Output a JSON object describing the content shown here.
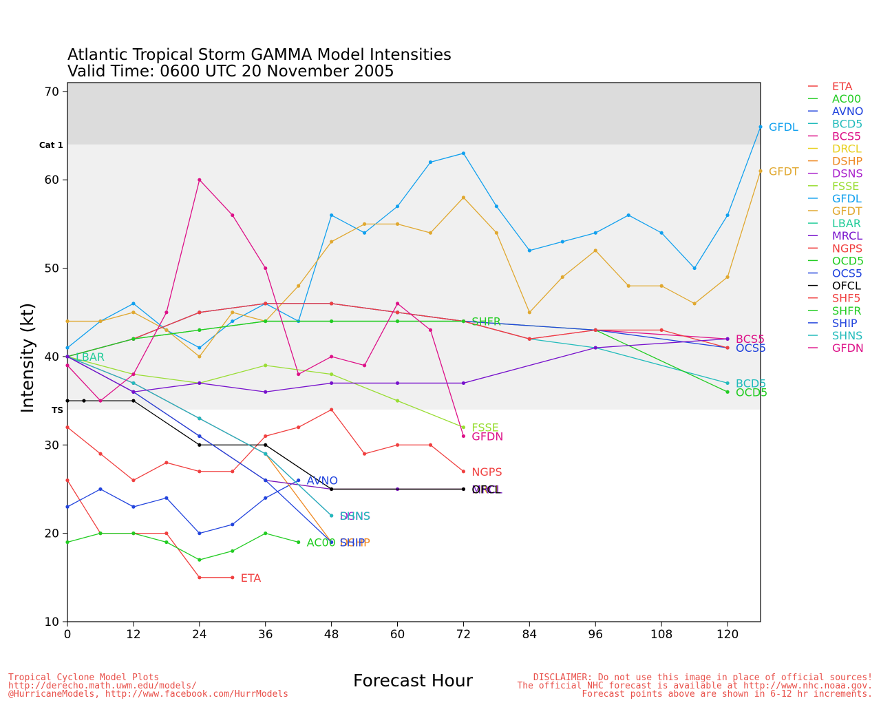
{
  "chart_data": {
    "type": "line",
    "title": "Atlantic Tropical Storm GAMMA Model Intensities",
    "subtitle": "Valid Time: 0600 UTC 20 November 2005",
    "xlabel": "Forecast Hour",
    "ylabel": "Intensity (kt)",
    "xlim": [
      0,
      126
    ],
    "ylim": [
      10,
      71
    ],
    "xticks": [
      0,
      12,
      24,
      36,
      48,
      60,
      72,
      84,
      96,
      108,
      120
    ],
    "yticks": [
      10,
      20,
      30,
      40,
      50,
      60,
      70
    ],
    "bands": [
      {
        "from": 34,
        "to": 64,
        "color": "#f0f0f0",
        "label": "TS",
        "label_at": 34
      },
      {
        "from": 64,
        "to": 71,
        "color": "#dcdcdc",
        "label": "Cat 1",
        "label_at": 64
      }
    ],
    "legend_position": "right",
    "series": [
      {
        "name": "ETA",
        "color": "#f04040",
        "points": [
          [
            0,
            26
          ],
          [
            6,
            20
          ],
          [
            12,
            20
          ],
          [
            18,
            20
          ],
          [
            24,
            15
          ],
          [
            30,
            15
          ]
        ]
      },
      {
        "name": "AC00",
        "color": "#22cc22",
        "points": [
          [
            0,
            19
          ],
          [
            6,
            20
          ],
          [
            12,
            20
          ],
          [
            18,
            19
          ],
          [
            24,
            17
          ],
          [
            30,
            18
          ],
          [
            36,
            20
          ],
          [
            42,
            19
          ]
        ]
      },
      {
        "name": "AVNO",
        "color": "#2244dd",
        "points": [
          [
            0,
            23
          ],
          [
            6,
            25
          ],
          [
            12,
            23
          ],
          [
            18,
            24
          ],
          [
            24,
            20
          ],
          [
            30,
            21
          ],
          [
            36,
            24
          ],
          [
            42,
            26
          ]
        ]
      },
      {
        "name": "BCD5",
        "color": "#22bbbb",
        "points": [
          [
            0,
            40
          ],
          [
            12,
            42
          ],
          [
            24,
            45
          ],
          [
            36,
            46
          ],
          [
            48,
            46
          ],
          [
            60,
            45
          ],
          [
            72,
            44
          ],
          [
            84,
            42
          ],
          [
            96,
            41
          ],
          [
            120,
            37
          ]
        ]
      },
      {
        "name": "BCS5",
        "color": "#dd1188",
        "points": [
          [
            0,
            40
          ],
          [
            12,
            42
          ],
          [
            24,
            45
          ],
          [
            36,
            46
          ],
          [
            48,
            46
          ],
          [
            60,
            45
          ],
          [
            72,
            44
          ],
          [
            84,
            42
          ],
          [
            96,
            43
          ],
          [
            120,
            42
          ]
        ]
      },
      {
        "name": "DRCL",
        "color": "#e8d020",
        "points": [
          [
            0,
            40
          ],
          [
            12,
            36
          ],
          [
            24,
            31
          ],
          [
            36,
            26
          ],
          [
            48,
            25
          ],
          [
            60,
            25
          ],
          [
            72,
            25
          ]
        ]
      },
      {
        "name": "DSHP",
        "color": "#ee8822",
        "points": [
          [
            0,
            40
          ],
          [
            12,
            37
          ],
          [
            24,
            33
          ],
          [
            36,
            29
          ],
          [
            48,
            19
          ]
        ]
      },
      {
        "name": "DSNS",
        "color": "#aa22cc",
        "points": [
          [
            0,
            40
          ],
          [
            12,
            37
          ],
          [
            24,
            33
          ],
          [
            36,
            29
          ],
          [
            48,
            22
          ]
        ]
      },
      {
        "name": "FSSE",
        "color": "#99dd33",
        "points": [
          [
            0,
            40
          ],
          [
            12,
            38
          ],
          [
            24,
            37
          ],
          [
            36,
            39
          ],
          [
            48,
            38
          ],
          [
            60,
            35
          ],
          [
            72,
            32
          ]
        ]
      },
      {
        "name": "GFDL",
        "color": "#11a0ee",
        "points": [
          [
            0,
            41
          ],
          [
            6,
            44
          ],
          [
            12,
            46
          ],
          [
            18,
            43
          ],
          [
            24,
            41
          ],
          [
            30,
            44
          ],
          [
            36,
            46
          ],
          [
            42,
            44
          ],
          [
            48,
            56
          ],
          [
            54,
            54
          ],
          [
            60,
            57
          ],
          [
            66,
            62
          ],
          [
            72,
            63
          ],
          [
            78,
            57
          ],
          [
            84,
            52
          ],
          [
            90,
            53
          ],
          [
            96,
            54
          ],
          [
            102,
            56
          ],
          [
            108,
            54
          ],
          [
            114,
            50
          ],
          [
            120,
            56
          ],
          [
            126,
            66
          ]
        ]
      },
      {
        "name": "GFDT",
        "color": "#e0a830",
        "points": [
          [
            0,
            44
          ],
          [
            6,
            44
          ],
          [
            12,
            45
          ],
          [
            18,
            43
          ],
          [
            24,
            40
          ],
          [
            30,
            45
          ],
          [
            36,
            44
          ],
          [
            42,
            48
          ],
          [
            48,
            53
          ],
          [
            54,
            55
          ],
          [
            60,
            55
          ],
          [
            66,
            54
          ],
          [
            72,
            58
          ],
          [
            78,
            54
          ],
          [
            84,
            45
          ],
          [
            90,
            49
          ],
          [
            96,
            52
          ],
          [
            102,
            48
          ],
          [
            108,
            48
          ],
          [
            114,
            46
          ],
          [
            120,
            49
          ],
          [
            126,
            61
          ]
        ]
      },
      {
        "name": "LBAR",
        "color": "#22cc99",
        "points": [
          [
            0,
            40
          ]
        ]
      },
      {
        "name": "MRCL",
        "color": "#7711cc",
        "points": [
          [
            0,
            40
          ],
          [
            12,
            36
          ],
          [
            24,
            31
          ],
          [
            36,
            26
          ],
          [
            48,
            25
          ],
          [
            60,
            25
          ],
          [
            72,
            25
          ]
        ]
      },
      {
        "name": "NGPS",
        "color": "#f04040",
        "points": [
          [
            0,
            32
          ],
          [
            6,
            29
          ],
          [
            12,
            26
          ],
          [
            18,
            28
          ],
          [
            24,
            27
          ],
          [
            30,
            27
          ],
          [
            36,
            31
          ],
          [
            42,
            32
          ],
          [
            48,
            34
          ],
          [
            54,
            29
          ],
          [
            60,
            30
          ],
          [
            66,
            30
          ],
          [
            72,
            27
          ]
        ]
      },
      {
        "name": "OCD5",
        "color": "#22cc22",
        "points": [
          [
            0,
            40
          ],
          [
            12,
            42
          ],
          [
            24,
            43
          ],
          [
            36,
            44
          ],
          [
            48,
            44
          ],
          [
            60,
            44
          ],
          [
            72,
            44
          ],
          [
            96,
            43
          ],
          [
            120,
            36
          ]
        ]
      },
      {
        "name": "OCS5",
        "color": "#2244dd",
        "points": [
          [
            0,
            40
          ],
          [
            12,
            42
          ],
          [
            24,
            45
          ],
          [
            36,
            46
          ],
          [
            48,
            46
          ],
          [
            60,
            45
          ],
          [
            72,
            44
          ],
          [
            96,
            43
          ],
          [
            120,
            41
          ]
        ]
      },
      {
        "name": "OFCL",
        "color": "#000000",
        "points": [
          [
            0,
            35
          ],
          [
            3,
            35
          ],
          [
            12,
            35
          ],
          [
            24,
            30
          ],
          [
            36,
            30
          ],
          [
            48,
            25
          ],
          [
            72,
            25
          ]
        ]
      },
      {
        "name": "SHF5",
        "color": "#f04040",
        "points": [
          [
            0,
            40
          ],
          [
            12,
            42
          ],
          [
            24,
            45
          ],
          [
            36,
            46
          ],
          [
            48,
            46
          ],
          [
            60,
            45
          ],
          [
            72,
            44
          ],
          [
            84,
            42
          ],
          [
            96,
            43
          ],
          [
            108,
            43
          ],
          [
            120,
            41
          ]
        ]
      },
      {
        "name": "SHFR",
        "color": "#22cc22",
        "points": [
          [
            0,
            40
          ],
          [
            12,
            42
          ],
          [
            24,
            43
          ],
          [
            36,
            44
          ],
          [
            48,
            44
          ],
          [
            60,
            44
          ],
          [
            72,
            44
          ]
        ]
      },
      {
        "name": "SHIP",
        "color": "#2244dd",
        "points": [
          [
            0,
            40
          ],
          [
            12,
            36
          ],
          [
            24,
            31
          ],
          [
            36,
            26
          ],
          [
            48,
            19
          ]
        ]
      },
      {
        "name": "SHNS",
        "color": "#22bbbb",
        "points": [
          [
            0,
            40
          ],
          [
            12,
            37
          ],
          [
            24,
            33
          ],
          [
            36,
            29
          ],
          [
            48,
            22
          ]
        ]
      },
      {
        "name": "GFDN",
        "color": "#dd1188",
        "points": [
          [
            0,
            39
          ],
          [
            6,
            35
          ],
          [
            12,
            38
          ],
          [
            18,
            45
          ],
          [
            24,
            60
          ],
          [
            30,
            56
          ],
          [
            36,
            50
          ],
          [
            42,
            38
          ],
          [
            48,
            40
          ],
          [
            54,
            39
          ],
          [
            60,
            46
          ],
          [
            66,
            43
          ],
          [
            72,
            31
          ]
        ]
      }
    ],
    "extra_lines": [
      {
        "name": "MRCL",
        "color": "#7711cc",
        "points": [
          [
            0,
            40
          ],
          [
            12,
            36
          ],
          [
            24,
            37
          ],
          [
            36,
            36
          ],
          [
            48,
            37
          ],
          [
            60,
            37
          ],
          [
            72,
            37
          ],
          [
            96,
            41
          ],
          [
            120,
            42
          ]
        ]
      }
    ],
    "end_labels": [
      {
        "text": "GFDL",
        "series": "GFDL"
      },
      {
        "text": "GFDT",
        "series": "GFDT"
      },
      {
        "text": "SHFR",
        "series": "SHFR"
      },
      {
        "text": "BCS5",
        "series": "BCS5"
      },
      {
        "text": "OCS5",
        "series": "OCS5"
      },
      {
        "text": "BCD5",
        "series": "BCD5"
      },
      {
        "text": "OCD5",
        "series": "OCD5"
      },
      {
        "text": "LBAR",
        "series": "LBAR"
      },
      {
        "text": "FSSE",
        "series": "FSSE"
      },
      {
        "text": "GFDN",
        "series": "GFDN"
      },
      {
        "text": "NGPS",
        "series": "NGPS"
      },
      {
        "text": "AVNO",
        "series": "AVNO"
      },
      {
        "text": "DRCL",
        "series": "DRCL"
      },
      {
        "text": "MRCL",
        "series": "MRCL"
      },
      {
        "text": "OFCL",
        "series": "OFCL"
      },
      {
        "text": "DSNS",
        "series": "DSNS"
      },
      {
        "text": "SHNS",
        "series": "SHNS"
      },
      {
        "text": "AC00",
        "series": "AC00"
      },
      {
        "text": "DSHP",
        "series": "DSHP"
      },
      {
        "text": "SHIP",
        "series": "SHIP"
      },
      {
        "text": "ETA",
        "series": "ETA"
      }
    ]
  },
  "footer": {
    "left": [
      "Tropical Cyclone Model Plots",
      "http://derecho.math.uwm.edu/models/",
      "@HurricaneModels, http://www.facebook.com/HurrModels"
    ],
    "right": [
      "DISCLAIMER: Do not use this image in place of official sources!",
      "The official NHC forecast is available at http://www.nhc.noaa.gov.",
      "Forecast points above are shown in 6-12 hr increments."
    ]
  }
}
